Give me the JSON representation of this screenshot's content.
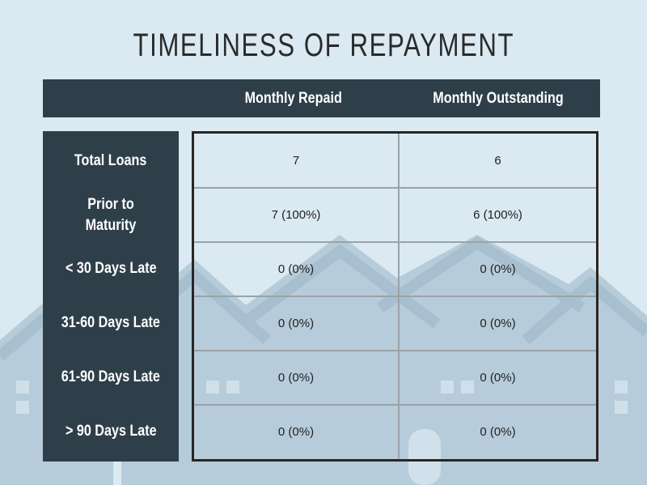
{
  "title": "TIMELINESS OF REPAYMENT",
  "columns": [
    "Monthly Repaid",
    "Monthly Outstanding"
  ],
  "rows": [
    {
      "label": "Total Loans",
      "values": [
        "7",
        "6"
      ]
    },
    {
      "label": "Prior to Maturity",
      "values": [
        "7 (100%)",
        "6 (100%)"
      ]
    },
    {
      "label": "< 30 Days Late",
      "values": [
        "0 (0%)",
        "0 (0%)"
      ]
    },
    {
      "label": "31-60 Days Late",
      "values": [
        "0 (0%)",
        "0 (0%)"
      ]
    },
    {
      "label": "61-90 Days Late",
      "values": [
        "0 (0%)",
        "0 (0%)"
      ]
    },
    {
      "label": "> 90 Days Late",
      "values": [
        "0 (0%)",
        "0 (0%)"
      ]
    }
  ],
  "colors": {
    "background": "#dbe9f2",
    "panel": "#2e3f4a",
    "houses": "#b3cad8"
  }
}
